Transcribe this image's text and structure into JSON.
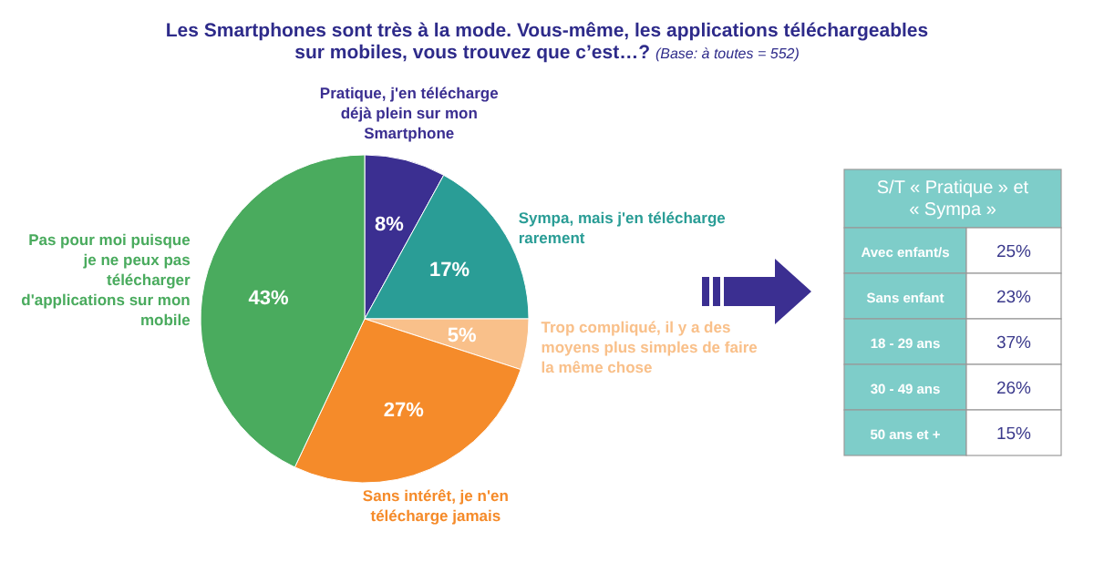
{
  "chart_data": [
    {
      "type": "pie",
      "title": "Les Smartphones sont très à la mode. Vous-même, les applications téléchargeables sur mobiles, vous trouvez que c’est…?",
      "subtitle": "(Base: à toutes = 552)",
      "categories": [
        "Pratique, j'en télécharge déjà plein sur mon Smartphone",
        "Sympa, mais j'en télécharge rarement",
        "Trop compliqué, il y a des moyens plus simples de faire la même chose",
        "Sans intérêt, je n'en télécharge jamais",
        "Pas pour moi puisque je ne peux pas télécharger d'applications sur mon mobile"
      ],
      "values": [
        8,
        17,
        5,
        27,
        43
      ],
      "value_labels": [
        "8%",
        "17%",
        "5%",
        "27%",
        "43%"
      ],
      "colors": [
        "#3b2f91",
        "#2a9d96",
        "#f9c08a",
        "#f58b2a",
        "#4aab5e"
      ]
    },
    {
      "type": "other",
      "title": "S/T « Pratique » et « Sympa »",
      "categories": [
        "Avec enfant/s",
        "Sans enfant",
        "18 - 29 ans",
        "30 - 49 ans",
        "50 ans et +"
      ],
      "value_labels": [
        "25%",
        "23%",
        "37%",
        "26%",
        "15%"
      ]
    }
  ]
}
